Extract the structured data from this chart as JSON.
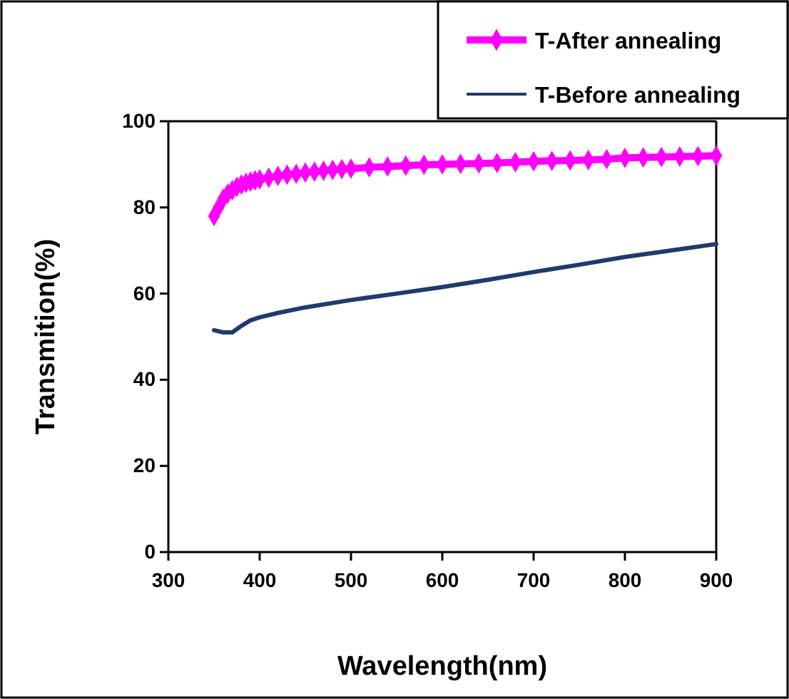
{
  "chart_data": {
    "type": "line",
    "xlabel": "Wavelength(nm)",
    "ylabel": "Transmition(%)",
    "xlim": [
      300,
      900
    ],
    "ylim": [
      0,
      100
    ],
    "xticks": [
      300,
      400,
      500,
      600,
      700,
      800,
      900
    ],
    "yticks": [
      0,
      20,
      40,
      60,
      80,
      100
    ],
    "grid": false,
    "legend": "top right",
    "series": [
      {
        "name": "T-After annealing",
        "color": "#ff00ff",
        "marker": "diamond",
        "x": [
          350,
          355,
          360,
          365,
          370,
          375,
          380,
          385,
          390,
          395,
          400,
          410,
          420,
          430,
          440,
          450,
          460,
          470,
          480,
          490,
          500,
          520,
          540,
          560,
          580,
          600,
          620,
          640,
          660,
          680,
          700,
          720,
          740,
          760,
          780,
          800,
          820,
          840,
          860,
          880,
          900
        ],
        "values": [
          78,
          80,
          82,
          83.2,
          84,
          84.8,
          85.3,
          85.7,
          86,
          86.3,
          86.5,
          86.9,
          87.3,
          87.6,
          87.8,
          88.1,
          88.3,
          88.5,
          88.7,
          88.9,
          89,
          89.3,
          89.5,
          89.7,
          89.9,
          90,
          90.1,
          90.2,
          90.3,
          90.5,
          90.7,
          90.8,
          90.9,
          91,
          91.2,
          91.5,
          91.6,
          91.7,
          91.8,
          91.9,
          92
        ]
      },
      {
        "name": "T-Before annealing",
        "color": "#1f3a6e",
        "marker": "none",
        "x": [
          350,
          360,
          370,
          380,
          390,
          400,
          420,
          450,
          500,
          550,
          600,
          650,
          700,
          750,
          800,
          850,
          900
        ],
        "values": [
          51.5,
          51,
          51,
          52.5,
          53.8,
          54.5,
          55.5,
          56.8,
          58.5,
          60,
          61.5,
          63.2,
          65,
          66.7,
          68.5,
          70,
          71.5
        ]
      }
    ]
  }
}
